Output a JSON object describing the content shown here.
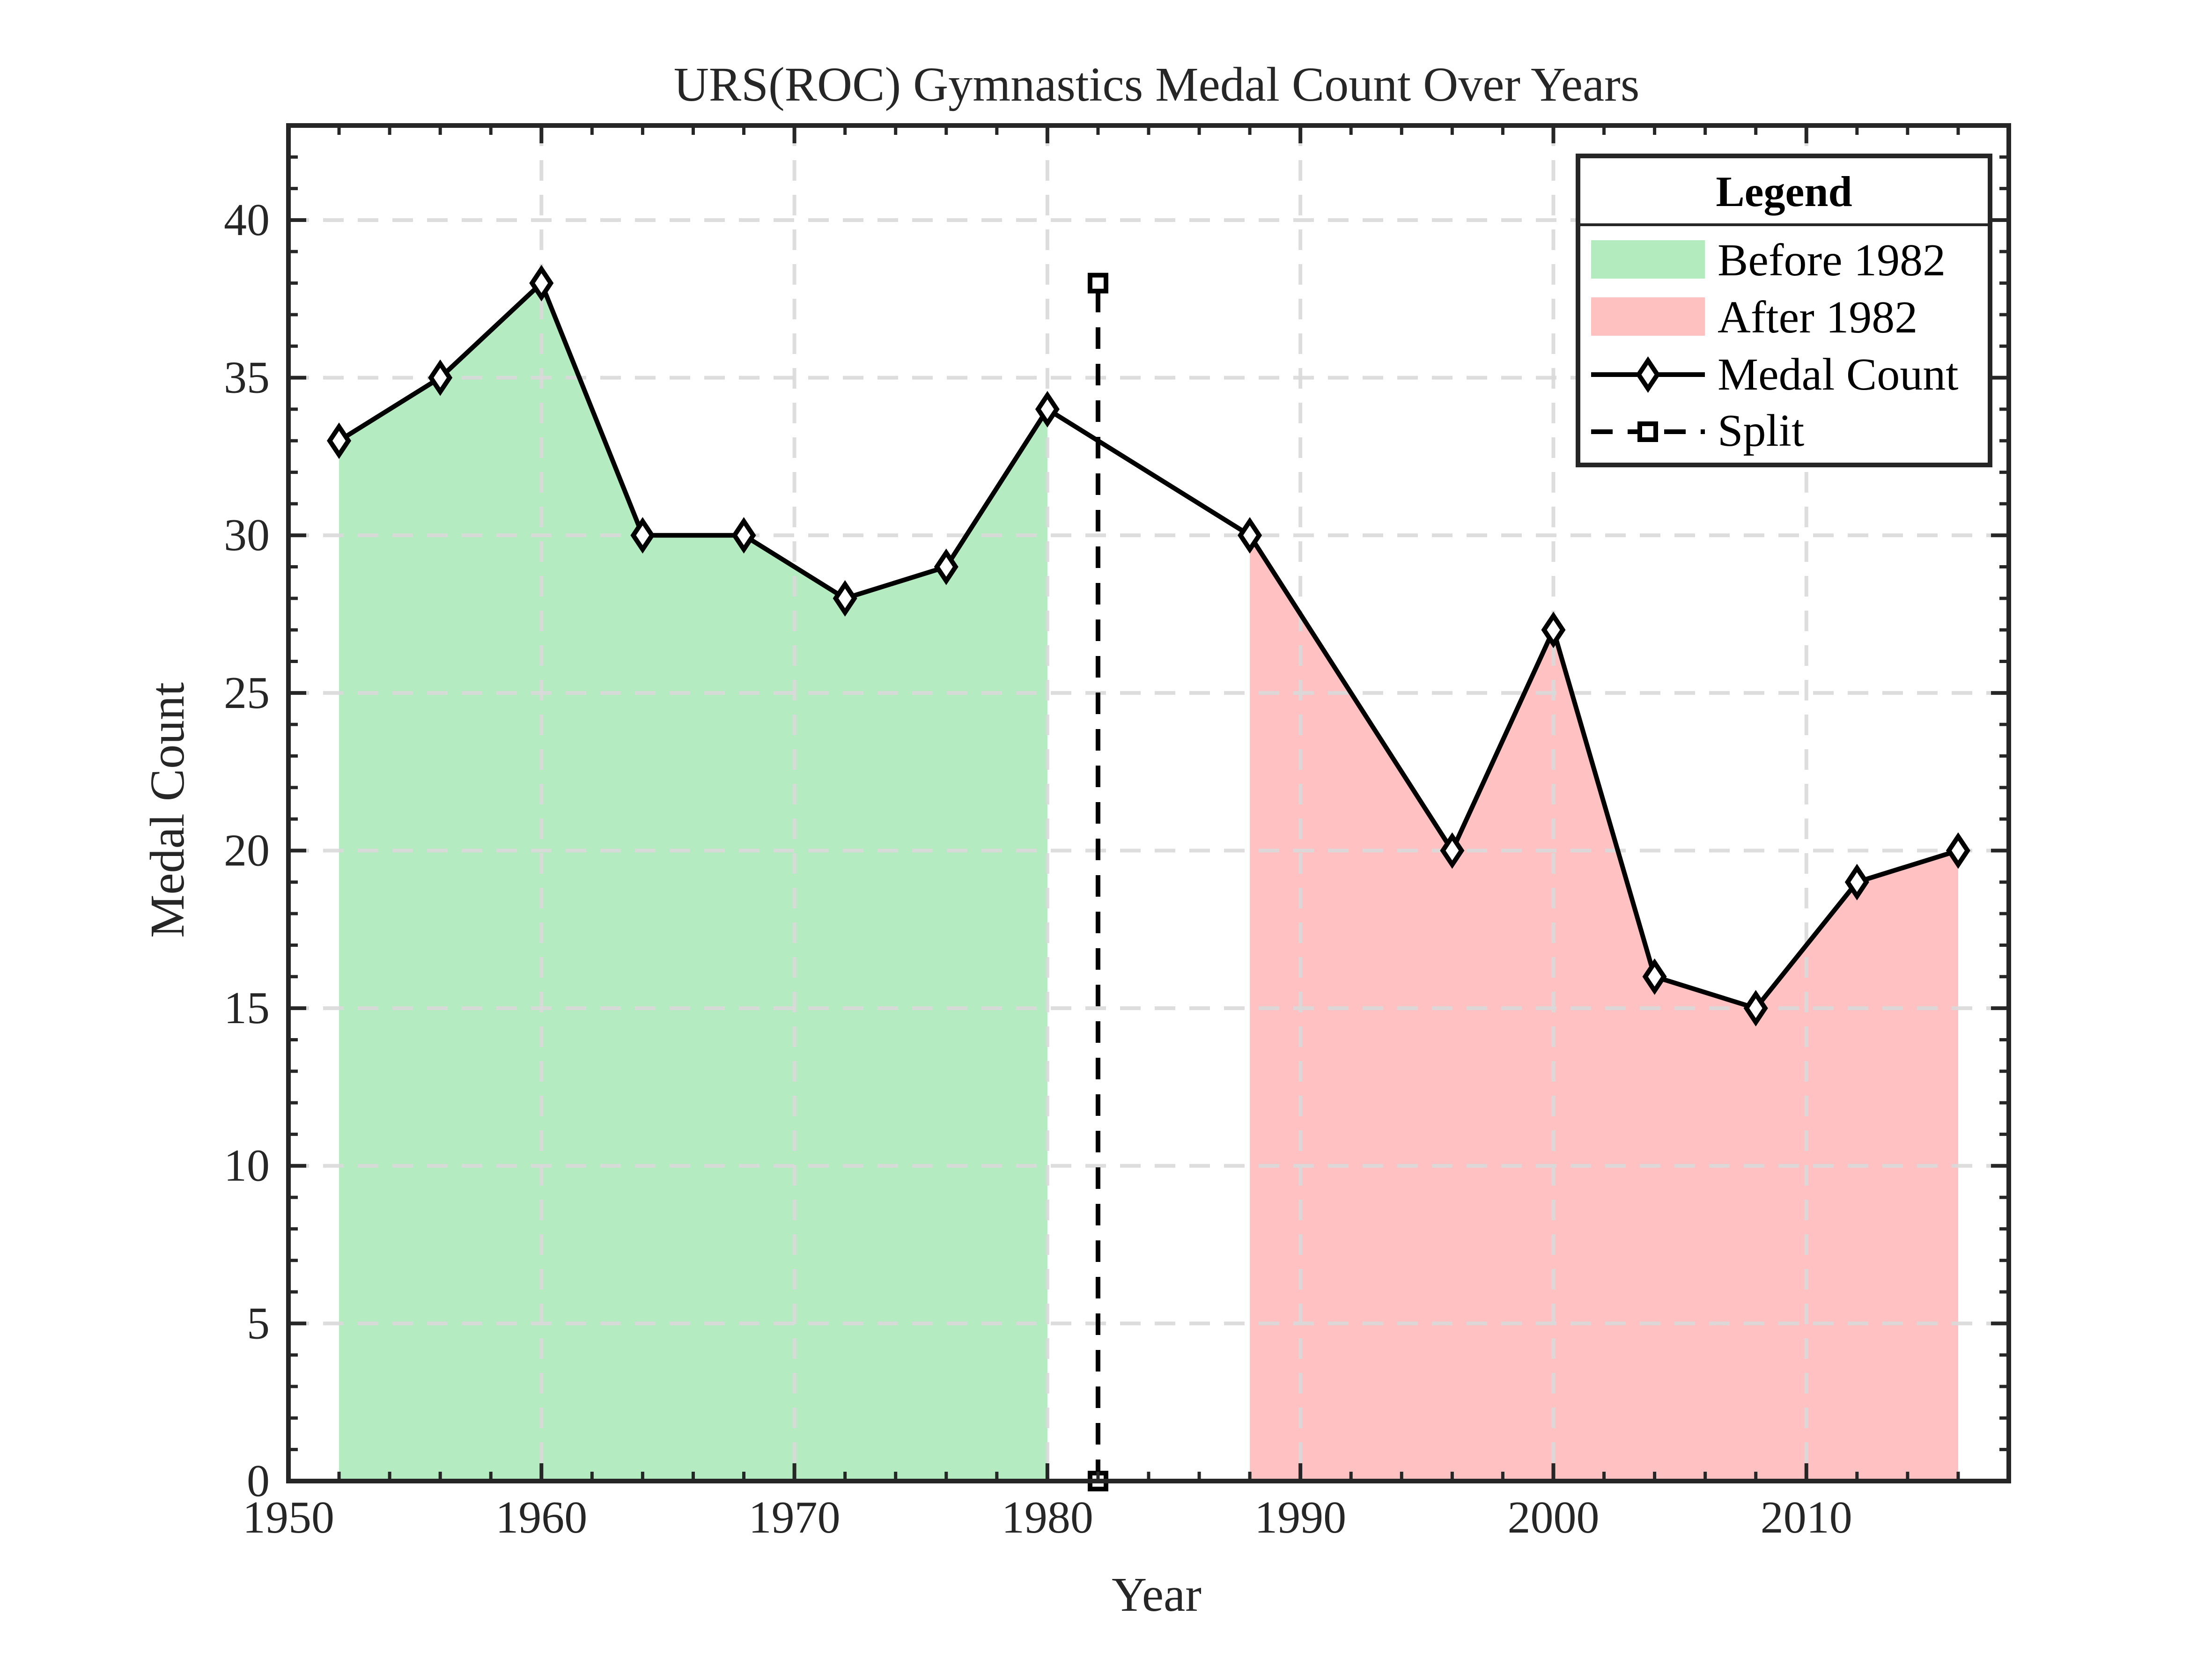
{
  "chart_data": {
    "type": "area",
    "title": "URS(ROC) Gymnastics Medal Count Over Years",
    "xlabel": "Year",
    "ylabel": "Medal Count",
    "xlim": [
      1950,
      2018
    ],
    "ylim": [
      0,
      43
    ],
    "xticks": [
      1950,
      1960,
      1970,
      1980,
      1990,
      2000,
      2010
    ],
    "yticks": [
      0,
      5,
      10,
      15,
      20,
      25,
      30,
      35,
      40
    ],
    "grid": true,
    "legend": {
      "title": "Legend",
      "placement": "top-right",
      "entries": [
        "Before 1982",
        "After 1982",
        "Medal Count",
        "Split"
      ]
    },
    "series": [
      {
        "name": "Medal Count",
        "x": [
          1952,
          1956,
          1960,
          1964,
          1968,
          1972,
          1976,
          1980,
          1988,
          1996,
          2000,
          2004,
          2008,
          2012,
          2016
        ],
        "values": [
          33,
          35,
          38,
          30,
          30,
          28,
          29,
          34,
          30,
          20,
          27,
          16,
          15,
          19,
          20
        ]
      }
    ],
    "areas": [
      {
        "name": "Before 1982",
        "x": [
          1952,
          1956,
          1960,
          1964,
          1968,
          1972,
          1976,
          1980
        ],
        "values": [
          33,
          35,
          38,
          30,
          30,
          28,
          29,
          34
        ]
      },
      {
        "name": "After 1982",
        "x": [
          1988,
          1996,
          2000,
          2004,
          2008,
          2012,
          2016
        ],
        "values": [
          30,
          20,
          27,
          16,
          15,
          19,
          20
        ]
      }
    ],
    "split": {
      "name": "Split",
      "x": 1982,
      "y": [
        0,
        38
      ]
    },
    "colors": {
      "before_fill": "#b3ebbf",
      "after_fill": "#ffc0c0",
      "line": "#000000",
      "grid": "#d9d9d9",
      "axis": "#262626"
    }
  }
}
